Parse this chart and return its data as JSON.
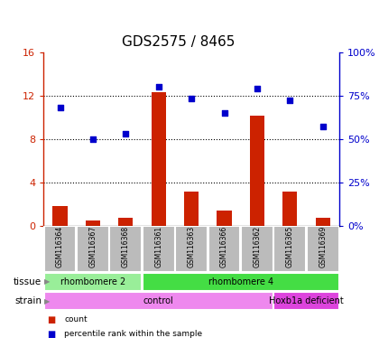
{
  "title": "GDS2575 / 8465",
  "samples": [
    "GSM116364",
    "GSM116367",
    "GSM116368",
    "GSM116361",
    "GSM116363",
    "GSM116366",
    "GSM116362",
    "GSM116365",
    "GSM116369"
  ],
  "counts": [
    1.8,
    0.5,
    0.7,
    12.3,
    3.1,
    1.4,
    10.1,
    3.1,
    0.7
  ],
  "percentile": [
    68,
    50,
    53,
    80,
    73,
    65,
    79,
    72,
    57
  ],
  "ylim_left": [
    0,
    16
  ],
  "ylim_right": [
    0,
    100
  ],
  "yticks_left": [
    0,
    4,
    8,
    12,
    16
  ],
  "ytick_labels_left": [
    "0",
    "4",
    "8",
    "12",
    "16"
  ],
  "yticks_right": [
    0,
    25,
    50,
    75,
    100
  ],
  "ytick_labels_right": [
    "0%",
    "25%",
    "50%",
    "75%",
    "100%"
  ],
  "bar_color": "#cc2200",
  "dot_color": "#0000cc",
  "tissue_groups": [
    {
      "label": "rhombomere 2",
      "start": 0,
      "end": 3,
      "color": "#99ee99"
    },
    {
      "label": "rhombomere 4",
      "start": 3,
      "end": 9,
      "color": "#44dd44"
    }
  ],
  "strain_groups": [
    {
      "label": "control",
      "start": 0,
      "end": 7,
      "color": "#ee88ee"
    },
    {
      "label": "Hoxb1a deficient",
      "start": 7,
      "end": 9,
      "color": "#dd44dd"
    }
  ],
  "sample_bg_color": "#bbbbbb",
  "legend_items": [
    {
      "label": "count",
      "color": "#cc2200"
    },
    {
      "label": "percentile rank within the sample",
      "color": "#0000cc"
    }
  ],
  "title_fontsize": 11,
  "axis_label_color_left": "#cc2200",
  "axis_label_color_right": "#0000cc"
}
